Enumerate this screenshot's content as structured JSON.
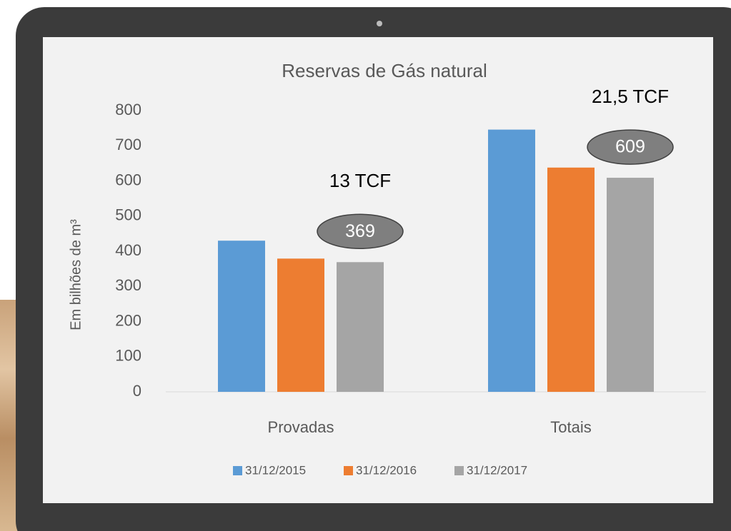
{
  "chart_data": {
    "type": "bar",
    "title": "Reservas de Gás natural",
    "ylabel": "Em bilhões de m³",
    "categories": [
      "Provadas",
      "Totais"
    ],
    "series": [
      {
        "name": "31/12/2015",
        "color": "#5b9bd5",
        "values": [
          430,
          746
        ]
      },
      {
        "name": "31/12/2016",
        "color": "#ed7d31",
        "values": [
          379,
          638
        ]
      },
      {
        "name": "31/12/2017",
        "color": "#a5a5a5",
        "values": [
          369,
          609
        ],
        "data_labels": true
      }
    ],
    "annotations": [
      "13 TCF",
      "21,5 TCF"
    ],
    "ylim": [
      0,
      800
    ],
    "yticks": [
      0,
      100,
      200,
      300,
      400,
      500,
      600,
      700,
      800
    ],
    "grid": false
  }
}
